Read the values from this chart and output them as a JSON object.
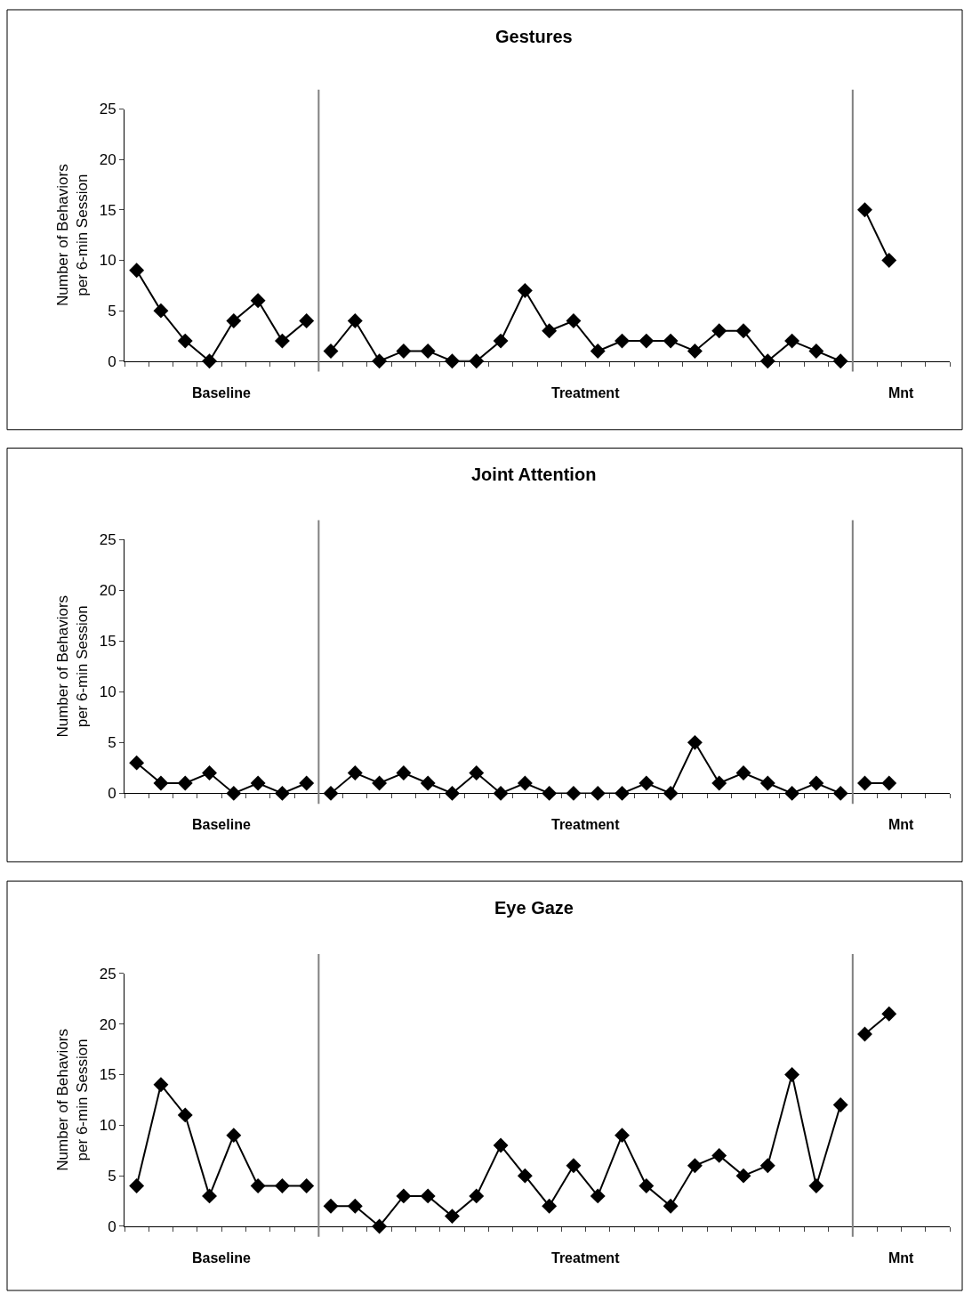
{
  "chart_data": [
    {
      "type": "line",
      "title": "Gestures",
      "ylabel": "Number of Behaviors\nper 6-min Session",
      "categories": [
        null,
        null,
        null,
        null,
        null,
        null,
        null,
        null,
        null,
        null,
        null,
        null,
        null,
        null,
        null,
        null,
        null,
        null,
        null,
        null,
        null,
        null,
        null,
        null,
        null,
        null,
        null,
        null,
        null,
        null,
        null,
        null,
        null,
        null
      ],
      "ylim": [
        0,
        25
      ],
      "yticks": [
        0,
        5,
        10,
        15,
        20,
        25
      ],
      "marker": "diamond",
      "series": [
        {
          "color": "#000000",
          "values": [
            9,
            5,
            2,
            0,
            4,
            6,
            2,
            4,
            null,
            null,
            null,
            null,
            null,
            null,
            null,
            null,
            null,
            null,
            null,
            null,
            null,
            null,
            null,
            null,
            null,
            null,
            null,
            null,
            null,
            null,
            null,
            null,
            null,
            null
          ]
        },
        {
          "color": "#000000",
          "values": [
            null,
            null,
            null,
            null,
            null,
            null,
            null,
            null,
            1,
            4,
            0,
            1,
            1,
            0,
            0,
            2,
            7,
            3,
            4,
            1,
            2,
            2,
            2,
            1,
            3,
            3,
            0,
            2,
            1,
            0,
            null,
            null,
            null,
            null
          ]
        },
        {
          "color": "#000000",
          "values": [
            null,
            null,
            null,
            null,
            null,
            null,
            null,
            null,
            null,
            null,
            null,
            null,
            null,
            null,
            null,
            null,
            null,
            null,
            null,
            null,
            null,
            null,
            null,
            null,
            null,
            null,
            null,
            null,
            null,
            null,
            15,
            10,
            null,
            null
          ]
        }
      ],
      "annotations": [
        "Baseline",
        "Treatment",
        "Mnt"
      ]
    },
    {
      "type": "line",
      "title": "Joint Attention",
      "ylabel": "Number of Behaviors\nper 6-min Session",
      "categories": [
        null,
        null,
        null,
        null,
        null,
        null,
        null,
        null,
        null,
        null,
        null,
        null,
        null,
        null,
        null,
        null,
        null,
        null,
        null,
        null,
        null,
        null,
        null,
        null,
        null,
        null,
        null,
        null,
        null,
        null,
        null,
        null,
        null,
        null
      ],
      "ylim": [
        0,
        25
      ],
      "yticks": [
        0,
        5,
        10,
        15,
        20,
        25
      ],
      "marker": "diamond",
      "series": [
        {
          "color": "#000000",
          "values": [
            3,
            1,
            1,
            2,
            0,
            1,
            0,
            1,
            null,
            null,
            null,
            null,
            null,
            null,
            null,
            null,
            null,
            null,
            null,
            null,
            null,
            null,
            null,
            null,
            null,
            null,
            null,
            null,
            null,
            null,
            null,
            null,
            null,
            null
          ]
        },
        {
          "color": "#000000",
          "values": [
            null,
            null,
            null,
            null,
            null,
            null,
            null,
            null,
            0,
            2,
            1,
            2,
            1,
            0,
            2,
            0,
            1,
            0,
            0,
            0,
            0,
            1,
            0,
            5,
            1,
            2,
            1,
            0,
            1,
            0,
            null,
            null,
            null,
            null
          ]
        },
        {
          "color": "#000000",
          "values": [
            null,
            null,
            null,
            null,
            null,
            null,
            null,
            null,
            null,
            null,
            null,
            null,
            null,
            null,
            null,
            null,
            null,
            null,
            null,
            null,
            null,
            null,
            null,
            null,
            null,
            null,
            null,
            null,
            null,
            null,
            1,
            1,
            null,
            null
          ]
        }
      ],
      "annotations": [
        "Baseline",
        "Treatment",
        "Mnt"
      ]
    },
    {
      "type": "line",
      "title": "Eye Gaze",
      "ylabel": "Number of Behaviors\nper 6-min Session",
      "categories": [
        null,
        null,
        null,
        null,
        null,
        null,
        null,
        null,
        null,
        null,
        null,
        null,
        null,
        null,
        null,
        null,
        null,
        null,
        null,
        null,
        null,
        null,
        null,
        null,
        null,
        null,
        null,
        null,
        null,
        null,
        null,
        null,
        null,
        null
      ],
      "ylim": [
        0,
        25
      ],
      "yticks": [
        0,
        5,
        10,
        15,
        20,
        25
      ],
      "marker": "diamond",
      "series": [
        {
          "color": "#000000",
          "values": [
            4,
            14,
            11,
            3,
            9,
            4,
            4,
            4,
            null,
            null,
            null,
            null,
            null,
            null,
            null,
            null,
            null,
            null,
            null,
            null,
            null,
            null,
            null,
            null,
            null,
            null,
            null,
            null,
            null,
            null,
            null,
            null,
            null,
            null
          ]
        },
        {
          "color": "#000000",
          "values": [
            null,
            null,
            null,
            null,
            null,
            null,
            null,
            null,
            2,
            2,
            0,
            3,
            3,
            1,
            3,
            8,
            5,
            2,
            6,
            3,
            9,
            4,
            2,
            6,
            7,
            5,
            6,
            15,
            4,
            12,
            null,
            null,
            null,
            null
          ]
        },
        {
          "color": "#000000",
          "values": [
            null,
            null,
            null,
            null,
            null,
            null,
            null,
            null,
            null,
            null,
            null,
            null,
            null,
            null,
            null,
            null,
            null,
            null,
            null,
            null,
            null,
            null,
            null,
            null,
            null,
            null,
            null,
            null,
            null,
            null,
            19,
            21,
            null,
            null
          ]
        }
      ],
      "annotations": [
        "Baseline",
        "Treatment",
        "Mnt"
      ]
    }
  ]
}
